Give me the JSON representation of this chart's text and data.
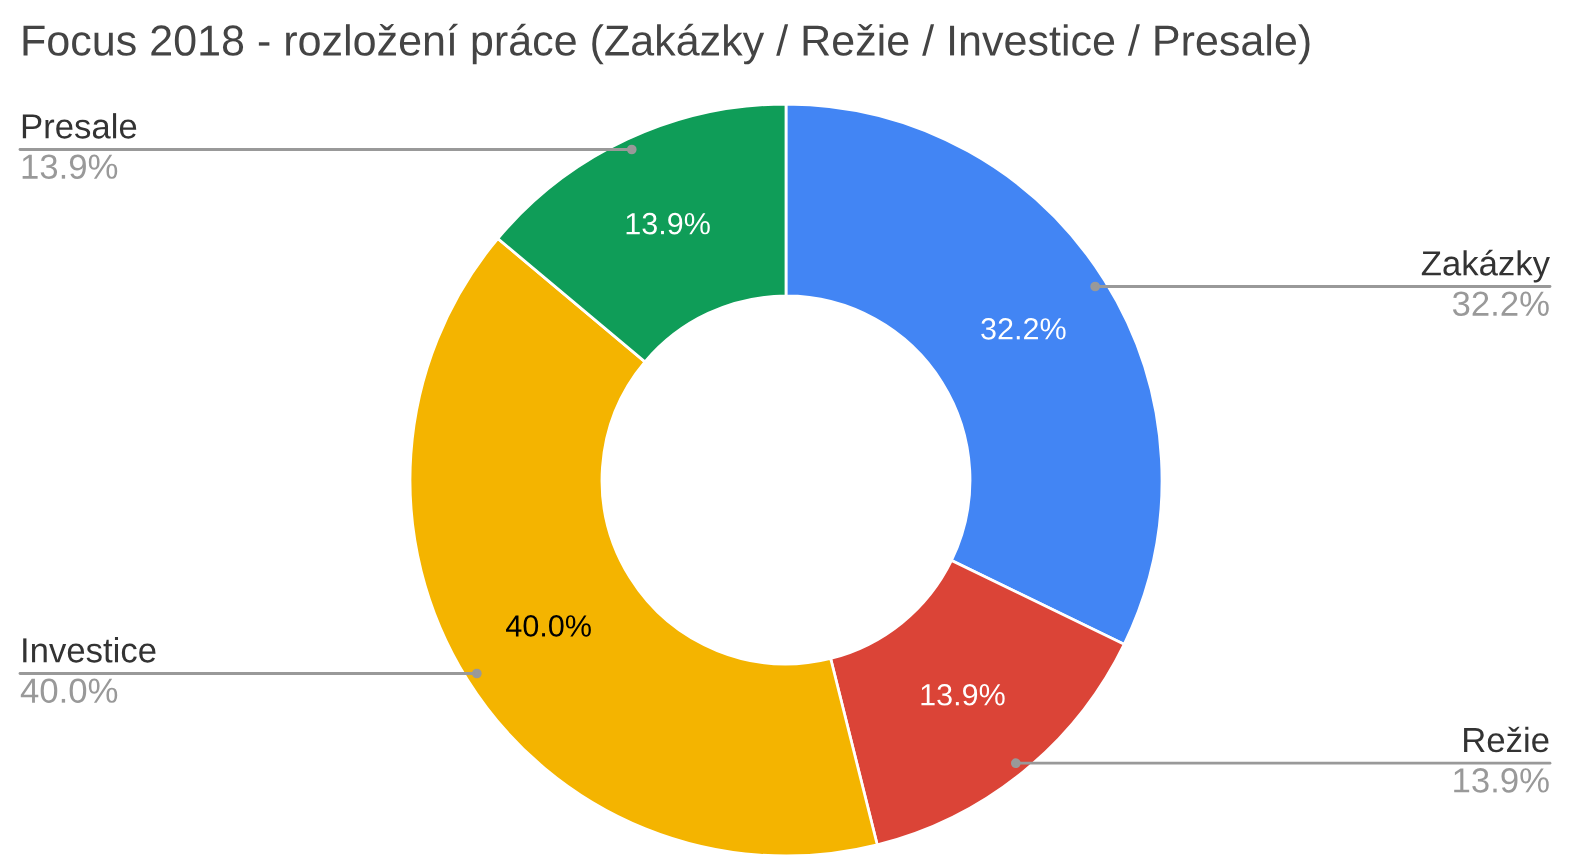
{
  "chart_data": {
    "type": "donut",
    "title": "Focus 2018 - rozložení práce (Zakázky / Režie / Investice / Presale)",
    "categories": [
      "Zakázky",
      "Režie",
      "Investice",
      "Presale"
    ],
    "values": [
      32.2,
      13.9,
      40.0,
      13.9
    ],
    "value_labels": [
      "32.2%",
      "13.9%",
      "40.0%",
      "13.9%"
    ],
    "colors": [
      "#4285f4",
      "#db4437",
      "#f4b400",
      "#0f9d58"
    ],
    "data_labels": true
  }
}
